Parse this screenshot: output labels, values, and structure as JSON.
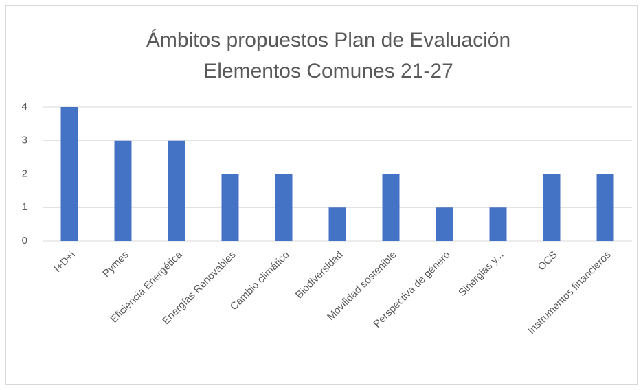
{
  "chart_data": {
    "type": "bar",
    "title": [
      "Ámbitos propuestos Plan de Evaluación",
      "Elementos Comunes 21-27"
    ],
    "categories": [
      "I+D+i",
      "Pymes",
      "Eficiencia Energética",
      "Energías Renovables",
      "Cambio climático",
      "Biodiversidad",
      "Movilidad sostenible",
      "Perspectiva de género",
      "Sinergias y...",
      "OCS",
      "Instrumentos financieros"
    ],
    "values": [
      4,
      3,
      3,
      2,
      2,
      1,
      2,
      1,
      1,
      2,
      2
    ],
    "color": "#4472c4",
    "ylim": [
      0,
      4
    ],
    "yticks": [
      0,
      1,
      2,
      3,
      4
    ],
    "grid": true
  }
}
